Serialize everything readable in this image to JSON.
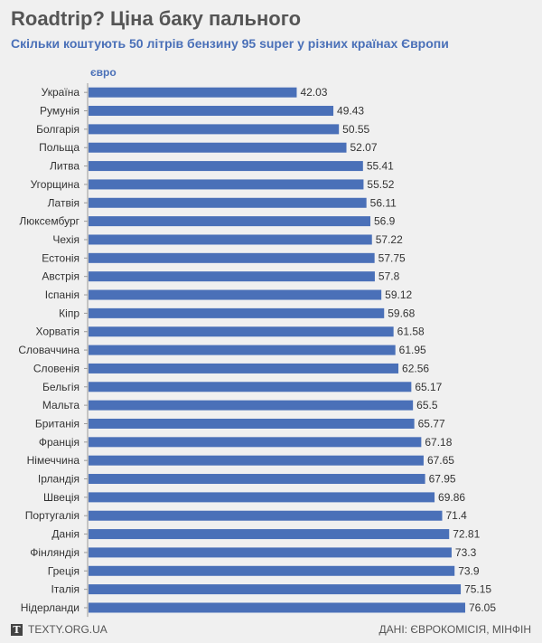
{
  "title": "Roadtrip? Ціна баку пального",
  "subtitle": "Скільки коштують 50 літрів бензину 95 super у різних країнах Європи",
  "footer": {
    "logo_letter": "T",
    "site": "TEXTY.ORG.UA",
    "source": "ДАНІ: ЄВРОКОМІСІЯ, МІНФІН"
  },
  "colors": {
    "bar": "#4a70b8",
    "title": "#555555",
    "subtitle": "#4a70b8",
    "background": "#f0f0f0"
  },
  "chart_data": {
    "type": "bar",
    "orientation": "horizontal",
    "unit_label": "євро",
    "xlim": [
      0,
      76.05
    ],
    "categories": [
      "Україна",
      "Румунія",
      "Болгарія",
      "Польща",
      "Литва",
      "Угорщина",
      "Латвія",
      "Люксембург",
      "Чехія",
      "Естонія",
      "Австрія",
      "Іспанія",
      "Кіпр",
      "Хорватія",
      "Словаччина",
      "Словенія",
      "Бельгія",
      "Мальта",
      "Британія",
      "Франція",
      "Німеччина",
      "Ірландія",
      "Швеція",
      "Португалія",
      "Данія",
      "Фінляндія",
      "Греція",
      "Італія",
      "Нідерланди"
    ],
    "values": [
      42.03,
      49.43,
      50.55,
      52.07,
      55.41,
      55.52,
      56.11,
      56.9,
      57.22,
      57.75,
      57.8,
      59.12,
      59.68,
      61.58,
      61.95,
      62.56,
      65.17,
      65.5,
      65.77,
      67.18,
      67.65,
      67.95,
      69.86,
      71.4,
      72.81,
      73.3,
      73.9,
      75.15,
      76.05
    ],
    "value_labels": [
      "42.03",
      "49.43",
      "50.55",
      "52.07",
      "55.41",
      "55.52",
      "56.11",
      "56.9",
      "57.22",
      "57.75",
      "57.8",
      "59.12",
      "59.68",
      "61.58",
      "61.95",
      "62.56",
      "65.17",
      "65.5",
      "65.77",
      "67.18",
      "67.65",
      "67.95",
      "69.86",
      "71.4",
      "72.81",
      "73.3",
      "73.9",
      "75.15",
      "76.05"
    ]
  }
}
